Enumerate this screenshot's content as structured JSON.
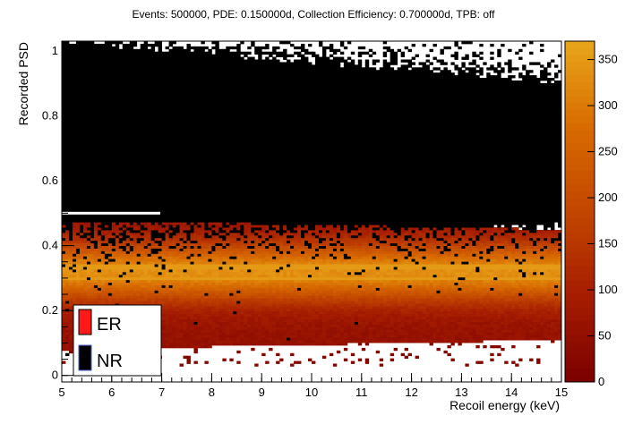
{
  "chart_data": {
    "type": "heatmap",
    "title": "Events: 500000, PDE: 0.150000d, Collection Efficiency: 0.700000d, TPB: off",
    "xlabel": "Recoil energy (keV)",
    "ylabel": "Recorded PSD",
    "xlim": [
      5,
      15
    ],
    "ylim": [
      -0.02,
      1.03
    ],
    "x_ticks": [
      "5",
      "6",
      "7",
      "8",
      "9",
      "10",
      "11",
      "12",
      "13",
      "14",
      "15"
    ],
    "y_ticks": [
      "0",
      "0.2",
      "0.4",
      "0.6",
      "0.8",
      "1"
    ],
    "colorbar": {
      "range": [
        0,
        370
      ],
      "ticks": [
        "0",
        "50",
        "100",
        "150",
        "200",
        "250",
        "300",
        "350"
      ],
      "colors": [
        "#7a0000",
        "#a51c00",
        "#c24600",
        "#d86b00",
        "#e8a61c"
      ]
    },
    "series": [
      {
        "name": "ER",
        "color": "#e8261c",
        "psd_band": [
          0.08,
          0.48
        ],
        "psd_peak": 0.32,
        "peak_counts": 360,
        "notes": "electron recoil band, highest density near PSD 0.30-0.35"
      },
      {
        "name": "NR",
        "color": "#000000",
        "psd_band": [
          0.3,
          1.0
        ],
        "psd_peak": 0.65,
        "notes": "nuclear recoil band drawn in black"
      }
    ],
    "legend": {
      "placement": "bottom-left",
      "entries": [
        {
          "label": "ER",
          "color": "#ff1a1a"
        },
        {
          "label": "NR",
          "color": "#000000"
        }
      ]
    },
    "grid": false
  }
}
